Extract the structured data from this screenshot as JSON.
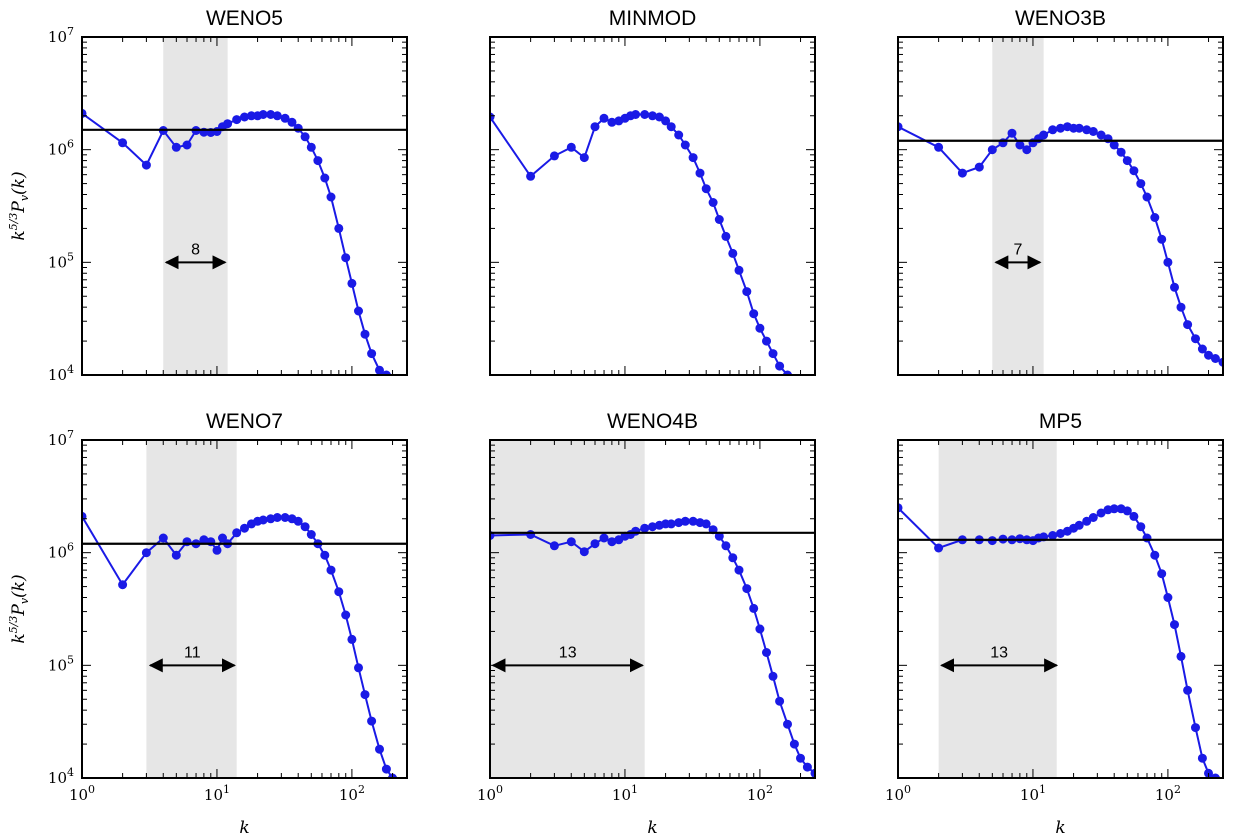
{
  "chart_data": [
    {
      "type": "scatter",
      "title": "WENO5",
      "xscale": "log",
      "yscale": "log",
      "xlim": [
        1,
        256
      ],
      "ylim": [
        10000,
        10000000
      ],
      "xlabel": "",
      "ylabel": "k^{5/3} P_v(k)",
      "xticks": [],
      "yticks": [
        10000.0,
        100000.0,
        1000000.0,
        10000000.0
      ],
      "hline": 1500000,
      "band": [
        4,
        12
      ],
      "arrow": {
        "from": 4.2,
        "to": 11.5,
        "y": 100000,
        "label": "8"
      },
      "series": [
        {
          "x": [
            1,
            2,
            3,
            4,
            5,
            6,
            7,
            8,
            9,
            10,
            11,
            12,
            14,
            16,
            18,
            20,
            22,
            25,
            28,
            32,
            36,
            40,
            45,
            50,
            56,
            63,
            70,
            80,
            90,
            100,
            112,
            125,
            140,
            160,
            180
          ],
          "y": [
            2100000,
            1150000,
            730000,
            1480000,
            1050000,
            1100000,
            1480000,
            1430000,
            1420000,
            1450000,
            1600000,
            1700000,
            1850000,
            1950000,
            2000000,
            2000000,
            2050000,
            2050000,
            2000000,
            1900000,
            1750000,
            1550000,
            1300000,
            1050000,
            800000,
            560000,
            380000,
            200000,
            110000,
            65000,
            37000,
            23000,
            15500,
            11000,
            10000
          ]
        }
      ]
    },
    {
      "type": "scatter",
      "title": "MINMOD",
      "xscale": "log",
      "yscale": "log",
      "xlim": [
        1,
        256
      ],
      "ylim": [
        10000,
        10000000
      ],
      "xlabel": "",
      "ylabel": "",
      "xticks": [],
      "yticks": [],
      "series": [
        {
          "x": [
            1,
            2,
            3,
            4,
            5,
            6,
            7,
            8,
            9,
            10,
            11,
            12,
            14,
            16,
            18,
            20,
            22,
            25,
            28,
            32,
            36,
            40,
            45,
            50,
            56,
            63,
            70,
            80,
            90,
            100,
            112,
            125,
            140,
            160
          ],
          "y": [
            1950000,
            580000,
            880000,
            1050000,
            850000,
            1600000,
            1900000,
            1750000,
            1800000,
            1900000,
            2000000,
            2050000,
            2050000,
            2000000,
            1950000,
            1800000,
            1600000,
            1350000,
            1100000,
            850000,
            620000,
            450000,
            340000,
            240000,
            170000,
            120000,
            85000,
            55000,
            35000,
            26000,
            20000,
            15500,
            12000,
            10000
          ]
        }
      ]
    },
    {
      "type": "scatter",
      "title": "WENO3B",
      "xscale": "log",
      "yscale": "log",
      "xlim": [
        1,
        256
      ],
      "ylim": [
        10000,
        10000000
      ],
      "xlabel": "",
      "ylabel": "",
      "xticks": [],
      "yticks": [],
      "hline": 1200000,
      "band": [
        5,
        12
      ],
      "arrow": {
        "from": 5.3,
        "to": 11.3,
        "y": 100000,
        "label": "7"
      },
      "series": [
        {
          "x": [
            1,
            2,
            3,
            4,
            5,
            6,
            7,
            8,
            9,
            10,
            11,
            12,
            14,
            16,
            18,
            20,
            22,
            25,
            28,
            32,
            36,
            40,
            45,
            50,
            56,
            63,
            70,
            80,
            90,
            100,
            112,
            125,
            140,
            160,
            180,
            200,
            225,
            256
          ],
          "y": [
            1600000,
            1050000,
            620000,
            700000,
            1000000,
            1150000,
            1400000,
            1100000,
            1000000,
            1150000,
            1250000,
            1350000,
            1500000,
            1550000,
            1600000,
            1550000,
            1550000,
            1500000,
            1450000,
            1350000,
            1250000,
            1100000,
            950000,
            800000,
            650000,
            500000,
            380000,
            250000,
            160000,
            100000,
            60000,
            40000,
            28000,
            21000,
            17000,
            15000,
            14000,
            13000
          ]
        }
      ]
    },
    {
      "type": "scatter",
      "title": "WENO7",
      "xscale": "log",
      "yscale": "log",
      "xlim": [
        1,
        256
      ],
      "ylim": [
        10000,
        10000000
      ],
      "xlabel": "k",
      "ylabel": "k^{5/3} P_v(k)",
      "xticks": [
        1,
        10,
        100
      ],
      "yticks": [
        10000.0,
        100000.0,
        1000000.0,
        10000000.0
      ],
      "hline": 1200000,
      "band": [
        3,
        14
      ],
      "arrow": {
        "from": 3.2,
        "to": 13.5,
        "y": 100000,
        "label": "11"
      },
      "series": [
        {
          "x": [
            1,
            2,
            3,
            4,
            5,
            6,
            7,
            8,
            9,
            10,
            11,
            12,
            14,
            16,
            18,
            20,
            22,
            25,
            28,
            32,
            36,
            40,
            45,
            50,
            56,
            63,
            70,
            80,
            90,
            100,
            112,
            125,
            140,
            160,
            180,
            200
          ],
          "y": [
            2100000,
            520000,
            1000000,
            1350000,
            950000,
            1250000,
            1200000,
            1300000,
            1250000,
            1050000,
            1350000,
            1200000,
            1500000,
            1650000,
            1800000,
            1900000,
            1950000,
            2000000,
            2050000,
            2050000,
            2000000,
            1900000,
            1700000,
            1450000,
            1200000,
            950000,
            700000,
            450000,
            280000,
            170000,
            95000,
            55000,
            32000,
            18000,
            12000,
            10000
          ]
        }
      ]
    },
    {
      "type": "scatter",
      "title": "WENO4B",
      "xscale": "log",
      "yscale": "log",
      "xlim": [
        1,
        256
      ],
      "ylim": [
        10000,
        10000000
      ],
      "xlabel": "k",
      "ylabel": "",
      "xticks": [
        1,
        10,
        100
      ],
      "yticks": [],
      "hline": 1500000,
      "band": [
        1,
        14
      ],
      "arrow": {
        "from": 1.05,
        "to": 13.5,
        "y": 100000,
        "label": "13"
      },
      "series": [
        {
          "x": [
            1,
            2,
            3,
            4,
            5,
            6,
            7,
            8,
            9,
            10,
            11,
            12,
            14,
            16,
            18,
            20,
            22,
            25,
            28,
            32,
            36,
            40,
            45,
            50,
            56,
            63,
            70,
            80,
            90,
            100,
            112,
            125,
            140,
            160,
            180,
            200,
            225,
            256
          ],
          "y": [
            1420000,
            1450000,
            1150000,
            1250000,
            1020000,
            1200000,
            1350000,
            1250000,
            1300000,
            1400000,
            1450000,
            1550000,
            1650000,
            1700000,
            1750000,
            1800000,
            1800000,
            1850000,
            1900000,
            1900000,
            1850000,
            1800000,
            1600000,
            1400000,
            1150000,
            900000,
            700000,
            480000,
            320000,
            210000,
            130000,
            80000,
            48000,
            30000,
            20000,
            15000,
            12500,
            11000
          ]
        }
      ]
    },
    {
      "type": "scatter",
      "title": "MP5",
      "xscale": "log",
      "yscale": "log",
      "xlim": [
        1,
        256
      ],
      "ylim": [
        10000,
        10000000
      ],
      "xlabel": "k",
      "ylabel": "",
      "xticks": [
        1,
        10,
        100
      ],
      "yticks": [],
      "hline": 1300000,
      "band": [
        2,
        15
      ],
      "arrow": {
        "from": 2.1,
        "to": 15,
        "y": 100000,
        "label": "13"
      },
      "series": [
        {
          "x": [
            1,
            2,
            3,
            4,
            5,
            6,
            7,
            8,
            9,
            10,
            11,
            12,
            14,
            16,
            18,
            20,
            22,
            25,
            28,
            32,
            36,
            40,
            45,
            50,
            56,
            63,
            70,
            80,
            90,
            100,
            112,
            125,
            140,
            160,
            180,
            200,
            225
          ],
          "y": [
            2500000,
            1100000,
            1300000,
            1300000,
            1280000,
            1320000,
            1300000,
            1330000,
            1300000,
            1280000,
            1350000,
            1380000,
            1420000,
            1480000,
            1550000,
            1650000,
            1750000,
            1900000,
            2050000,
            2250000,
            2400000,
            2450000,
            2450000,
            2350000,
            2100000,
            1700000,
            1350000,
            950000,
            650000,
            400000,
            230000,
            120000,
            60000,
            28000,
            15000,
            11000,
            10000
          ]
        }
      ]
    }
  ]
}
